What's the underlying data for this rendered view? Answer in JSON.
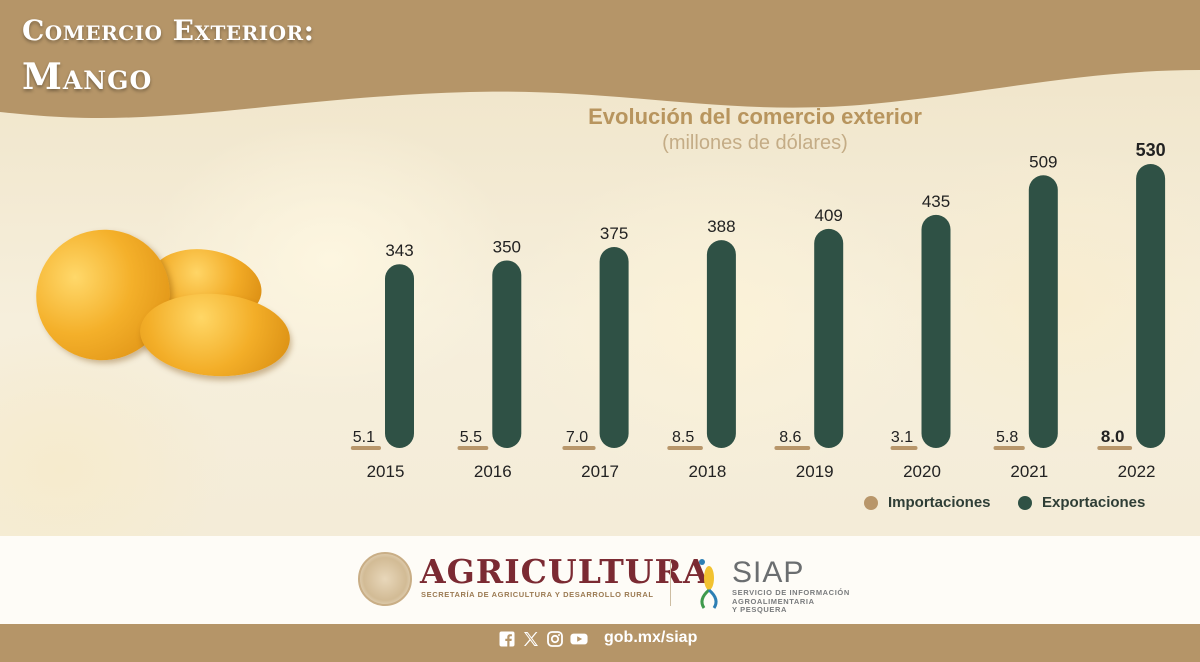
{
  "header": {
    "title_line1": "Comercio Exterior:",
    "title_line2": "Mango"
  },
  "colors": {
    "importaciones": "#b8966a",
    "exportaciones": "#2f5145",
    "header_band": "#b59568",
    "title_gold": "#b8955e",
    "agricultura_maroon": "#7b2a32"
  },
  "chart_data": {
    "type": "bar",
    "title": "Evolución del comercio exterior",
    "subtitle": "(millones de dólares)",
    "categories": [
      "2015",
      "2016",
      "2017",
      "2018",
      "2019",
      "2020",
      "2021",
      "2022"
    ],
    "series": [
      {
        "name": "Importaciones",
        "values": [
          5.1,
          5.5,
          7.0,
          8.5,
          8.6,
          3.1,
          5.8,
          8.0
        ],
        "labels": [
          "5.1",
          "5.5",
          "7.0",
          "8.5",
          "8.6",
          "3.1",
          "5.8",
          "8.0"
        ]
      },
      {
        "name": "Exportaciones",
        "values": [
          343,
          350,
          375,
          388,
          409,
          435,
          509,
          530
        ],
        "labels": [
          "343",
          "350",
          "375",
          "388",
          "409",
          "435",
          "509",
          "530"
        ]
      }
    ],
    "highlight_last": true,
    "legend": "bottom-right",
    "grid": false,
    "ylim": [
      0,
      540
    ]
  },
  "footer": {
    "agricultura": "AGRICULTURA",
    "agricultura_sub": "SECRETARÍA DE AGRICULTURA Y DESARROLLO RURAL",
    "siap": "SIAP",
    "siap_sub_1": "SERVICIO DE INFORMACIÓN",
    "siap_sub_2": "AGROALIMENTARIA",
    "siap_sub_3": "Y PESQUERA",
    "social_icons": [
      "facebook-icon",
      "x-icon",
      "instagram-icon",
      "youtube-icon"
    ],
    "website": "gob.mx/siap"
  }
}
